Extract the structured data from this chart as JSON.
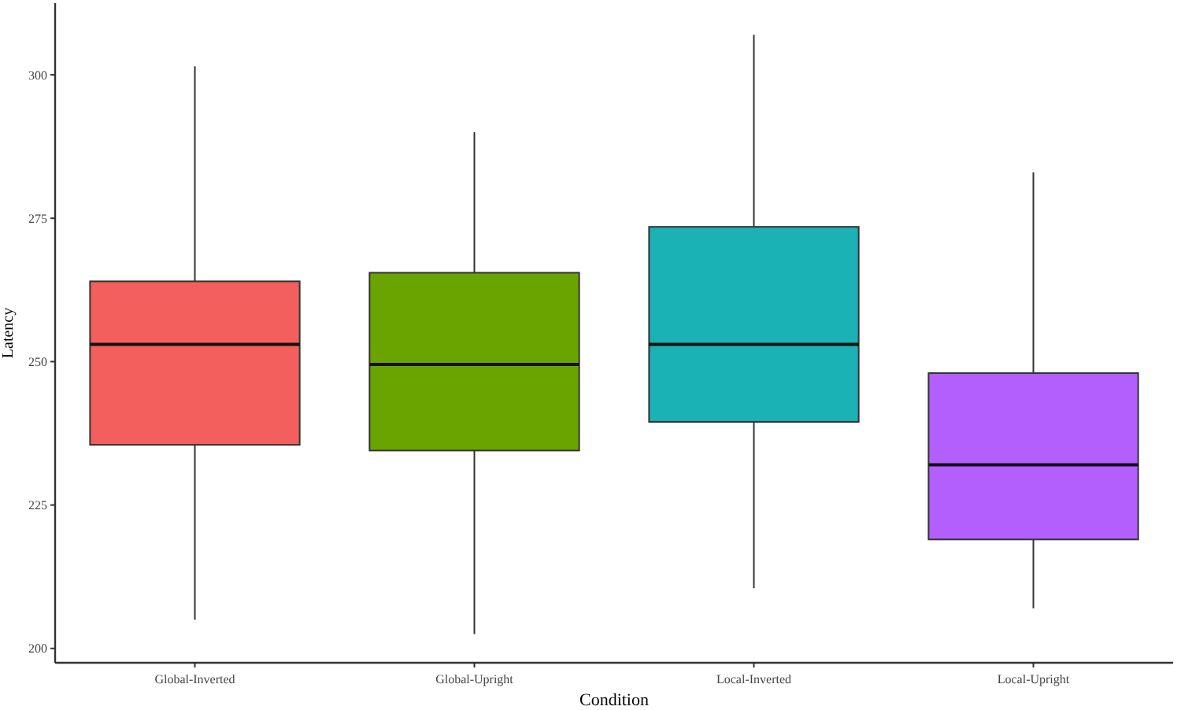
{
  "chart_data": {
    "type": "box",
    "xlabel": "Condition",
    "ylabel": "Latency",
    "categories": [
      "Global-Inverted",
      "Global-Upright",
      "Local-Inverted",
      "Local-Upright"
    ],
    "colors": [
      "#f25f5c",
      "#6aa401",
      "#1ab2b5",
      "#b35ffd"
    ],
    "boxes": [
      {
        "low": 205,
        "q1": 235.5,
        "median": 253,
        "q3": 264,
        "high": 301.5
      },
      {
        "low": 202.5,
        "q1": 234.5,
        "median": 249.5,
        "q3": 265.5,
        "high": 290
      },
      {
        "low": 210.5,
        "q1": 239.5,
        "median": 253,
        "q3": 273.5,
        "high": 307
      },
      {
        "low": 207,
        "q1": 219,
        "median": 232,
        "q3": 248,
        "high": 283
      }
    ],
    "ylim": [
      197.5,
      312.5
    ],
    "yticks": [
      200,
      225,
      250,
      275,
      300
    ],
    "grid": false
  }
}
